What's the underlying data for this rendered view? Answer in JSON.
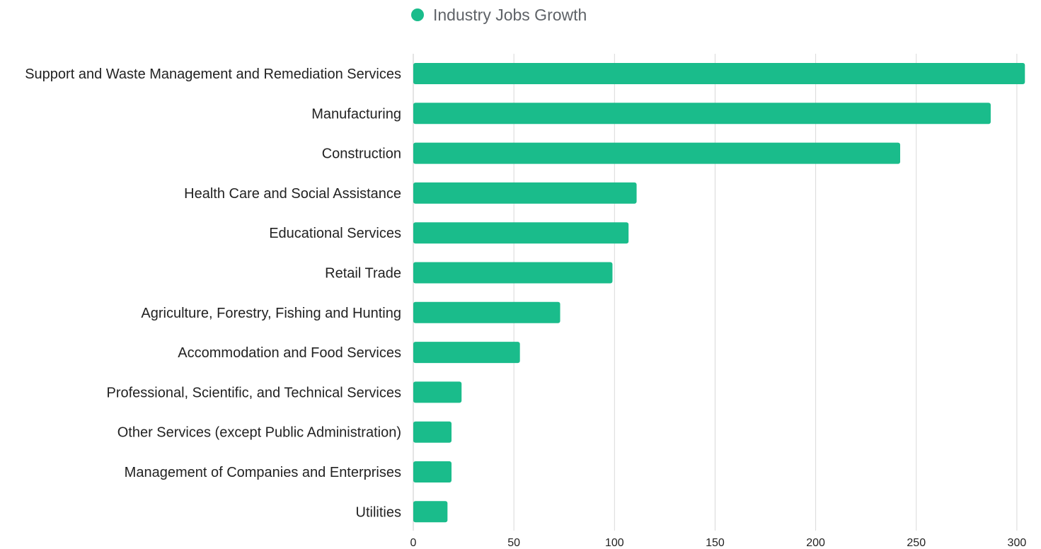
{
  "chart_data": {
    "type": "bar",
    "orientation": "horizontal",
    "title": "",
    "xlabel": "",
    "ylabel": "",
    "categories": [
      "Support and Waste Management and Remediation Services",
      "Manufacturing",
      "Construction",
      "Health Care and Social Assistance",
      "Educational Services",
      "Retail Trade",
      "Agriculture, Forestry, Fishing and Hunting",
      "Accommodation and Food Services",
      "Professional, Scientific, and Technical Services",
      "Other Services (except Public Administration)",
      "Management of Companies and Enterprises",
      "Utilities"
    ],
    "series": [
      {
        "name": "Industry Jobs Growth",
        "color": "#1abc8b",
        "values": [
          304,
          287,
          242,
          111,
          107,
          99,
          73,
          53,
          24,
          19,
          19,
          17
        ]
      }
    ],
    "xlim": [
      0,
      300
    ],
    "xticks": [
      "0",
      "50",
      "100",
      "150",
      "200",
      "250",
      "300"
    ],
    "grid": true,
    "legend_position": "top-center"
  }
}
